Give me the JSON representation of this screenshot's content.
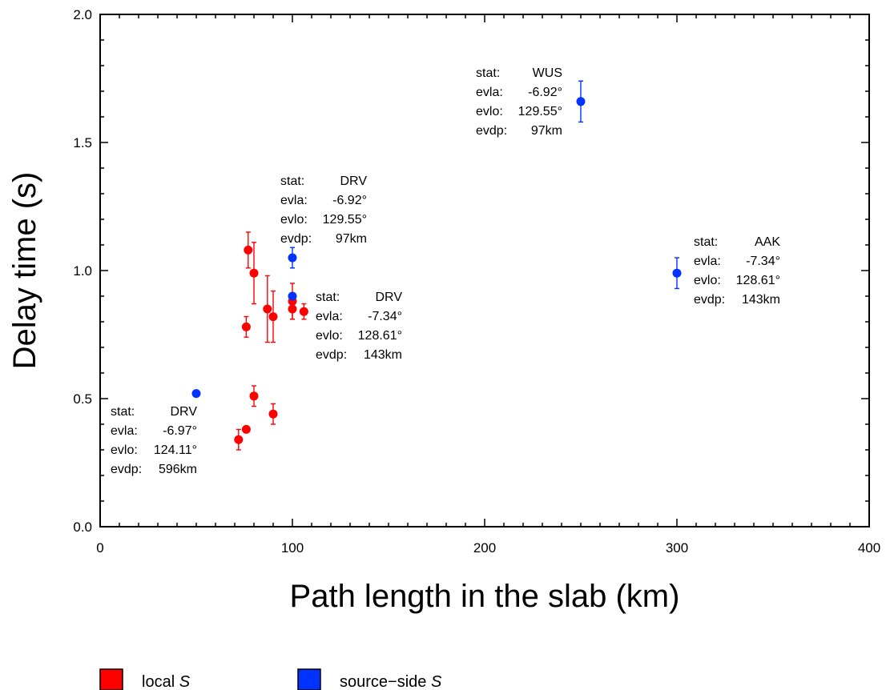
{
  "chart_data": {
    "type": "scatter",
    "xlabel": "Path length in the slab (km)",
    "ylabel": "Delay time (s)",
    "xlim": [
      0,
      400
    ],
    "ylim": [
      0,
      2.0
    ],
    "x_ticks": [
      0,
      100,
      200,
      300,
      400
    ],
    "y_ticks": [
      0.0,
      0.5,
      1.0,
      1.5,
      2.0
    ],
    "x_tick_labels": [
      "0",
      "100",
      "200",
      "300",
      "400"
    ],
    "y_tick_labels": [
      "0.0",
      "0.5",
      "1.0",
      "1.5",
      "2.0"
    ],
    "grid": false,
    "legend_position": "bottom-left",
    "series": [
      {
        "name": "local S",
        "legend_prefix": "local",
        "legend_italic": "S",
        "color": "#ff0000",
        "points": [
          {
            "x": 72,
            "y": 0.34,
            "err": 0.04
          },
          {
            "x": 76,
            "y": 0.38,
            "err": 0.0
          },
          {
            "x": 80,
            "y": 0.51,
            "err": 0.04
          },
          {
            "x": 90,
            "y": 0.44,
            "err": 0.04
          },
          {
            "x": 76,
            "y": 0.78,
            "err": 0.04
          },
          {
            "x": 77,
            "y": 1.08,
            "err": 0.07
          },
          {
            "x": 80,
            "y": 0.99,
            "err": 0.12
          },
          {
            "x": 87,
            "y": 0.85,
            "err": 0.13
          },
          {
            "x": 90,
            "y": 0.82,
            "err": 0.1
          },
          {
            "x": 100,
            "y": 0.88,
            "err": 0.07
          },
          {
            "x": 100,
            "y": 0.85,
            "err": 0.04
          },
          {
            "x": 106,
            "y": 0.84,
            "err": 0.03
          }
        ]
      },
      {
        "name": "source-side S",
        "legend_prefix": "source−side",
        "legend_italic": "S",
        "color": "#0033ff",
        "points": [
          {
            "x": 50,
            "y": 0.52,
            "err": 0.0
          },
          {
            "x": 100,
            "y": 1.05,
            "err": 0.04
          },
          {
            "x": 100,
            "y": 0.9,
            "err": 0.0
          },
          {
            "x": 250,
            "y": 1.66,
            "err": 0.08
          },
          {
            "x": 300,
            "y": 0.99,
            "err": 0.06
          }
        ]
      }
    ],
    "annotations": [
      {
        "stat": "DRV",
        "evla": "-6.97°",
        "evlo": "124.11°",
        "evdp": "596km"
      },
      {
        "stat": "DRV",
        "evla": "-6.92°",
        "evlo": "129.55°",
        "evdp": "97km"
      },
      {
        "stat": "DRV",
        "evla": "-7.34°",
        "evlo": "128.61°",
        "evdp": "143km"
      },
      {
        "stat": "WUS",
        "evla": "-6.92°",
        "evlo": "129.55°",
        "evdp": "97km"
      },
      {
        "stat": "AAK",
        "evla": "-7.34°",
        "evlo": "128.61°",
        "evdp": "143km"
      }
    ],
    "annotation_keys": {
      "stat": "stat:",
      "evla": "evla:",
      "evlo": "evlo:",
      "evdp": "evdp:"
    }
  }
}
